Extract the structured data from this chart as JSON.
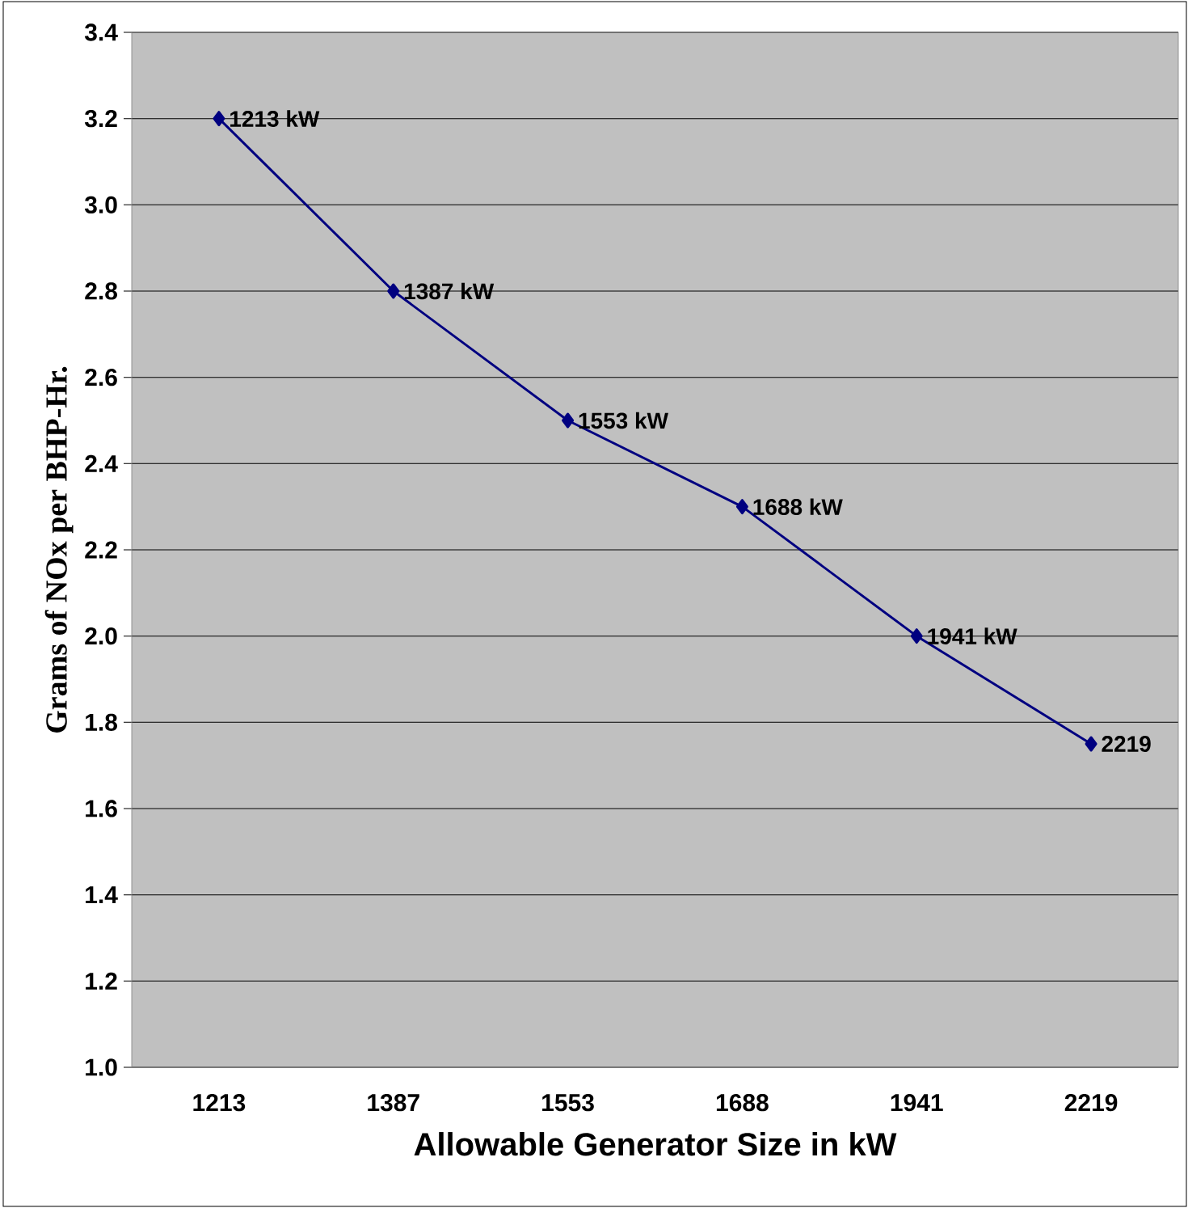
{
  "chart_data": {
    "type": "line",
    "xlabel": "Allowable Generator Size in kW",
    "ylabel": "Grams of NOx per BHP-Hr.",
    "categories": [
      "1213",
      "1387",
      "1553",
      "1688",
      "1941",
      "2219"
    ],
    "values": [
      3.2,
      2.8,
      2.5,
      2.3,
      2.0,
      1.75
    ],
    "annotations": [
      {
        "text": "1213 kW",
        "x": "1213",
        "y": 3.2
      },
      {
        "text": "1387 kW",
        "x": "1387",
        "y": 2.8
      },
      {
        "text": "1553 kW",
        "x": "1553",
        "y": 2.5
      },
      {
        "text": "1688 kW",
        "x": "1688",
        "y": 2.3
      },
      {
        "text": "1941 kW",
        "x": "1941",
        "y": 2.0
      },
      {
        "text": "2219",
        "x": "2219",
        "y": 1.75
      }
    ],
    "color": "#000080",
    "marker": "diamond",
    "line_style": "solid",
    "ylim": [
      1.0,
      3.4
    ],
    "yticks": [
      {
        "value": 1.0,
        "label": "1.0"
      },
      {
        "value": 1.2,
        "label": "1.2"
      },
      {
        "value": 1.4,
        "label": "1.4"
      },
      {
        "value": 1.6,
        "label": "1.6"
      },
      {
        "value": 1.8,
        "label": "1.8"
      },
      {
        "value": 2.0,
        "label": "2.0"
      },
      {
        "value": 2.2,
        "label": "2.2"
      },
      {
        "value": 2.4,
        "label": "2.4"
      },
      {
        "value": 2.6,
        "label": "2.6"
      },
      {
        "value": 2.8,
        "label": "2.8"
      },
      {
        "value": 3.0,
        "label": "3.0"
      },
      {
        "value": 3.2,
        "label": "3.2"
      },
      {
        "value": 3.4,
        "label": "3.4"
      }
    ],
    "grid": "y"
  }
}
